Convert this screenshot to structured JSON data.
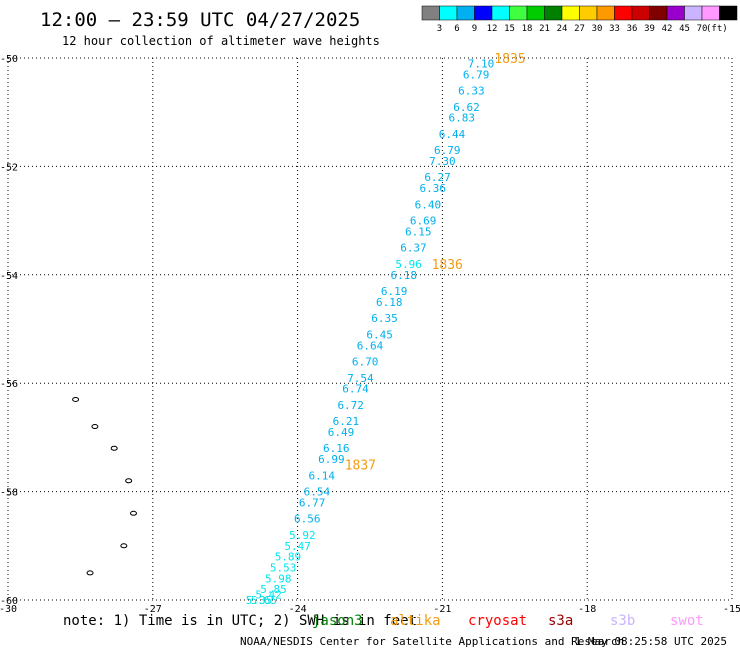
{
  "header": {
    "title": "12:00 — 23:59 UTC 04/27/2025",
    "subtitle": "12 hour collection of altimeter wave heights"
  },
  "colorbar": {
    "ticks": [
      "3",
      "6",
      "9",
      "12",
      "15",
      "18",
      "21",
      "24",
      "27",
      "30",
      "33",
      "36",
      "39",
      "42",
      "45",
      "70"
    ],
    "unit": "(ft)",
    "colors": [
      "#808080",
      "#00ffff",
      "#00b0f0",
      "#0000ff",
      "#00ffff",
      "#40ff40",
      "#00cc00",
      "#008000",
      "#ffff00",
      "#ffcc00",
      "#ff9900",
      "#ff0000",
      "#cc0000",
      "#800000",
      "#9900cc",
      "#ccb3ff",
      "#ff99ff",
      "#000000"
    ]
  },
  "footer": {
    "note": "note: 1) Time is in UTC; 2) SWH is in feet",
    "credit": "NOAA/NESDIS Center for Satellite Applications and Research",
    "timestamp": "1 May 08:25:58 UTC 2025",
    "satellites": [
      {
        "name": "jason3",
        "color": "#008000"
      },
      {
        "name": "altika",
        "color": "#f39c12"
      },
      {
        "name": "cryosat",
        "color": "#ff0000"
      },
      {
        "name": "s3a",
        "color": "#990000"
      },
      {
        "name": "s3b",
        "color": "#ccb3ff"
      },
      {
        "name": "swot",
        "color": "#ff99ff"
      }
    ]
  },
  "chart_data": {
    "type": "scatter",
    "xlim": [
      -30,
      -15
    ],
    "ylim": [
      -60,
      -50
    ],
    "x_ticks": [
      -30,
      -27,
      -24,
      -21,
      -18,
      -15
    ],
    "y_ticks": [
      -50,
      -52,
      -54,
      -56,
      -58,
      -60
    ],
    "x_tick_labels": [
      "-30",
      "-27",
      "-24",
      "-21",
      "-18",
      "-15"
    ],
    "y_tick_labels": [
      "-50",
      "-52",
      "-54",
      "-56",
      "-58",
      "-60"
    ],
    "grid": true,
    "track_points": [
      {
        "lon": -20.2,
        "lat": -50.1,
        "swh": "7.10",
        "color": "#00b0f0"
      },
      {
        "lon": -20.3,
        "lat": -50.3,
        "swh": "6.79",
        "color": "#00b0f0"
      },
      {
        "lon": -20.4,
        "lat": -50.6,
        "swh": "6.33",
        "color": "#00b0f0"
      },
      {
        "lon": -20.5,
        "lat": -50.9,
        "swh": "6.62",
        "color": "#00b0f0"
      },
      {
        "lon": -20.6,
        "lat": -51.1,
        "swh": "6.83",
        "color": "#00b0f0"
      },
      {
        "lon": -20.8,
        "lat": -51.4,
        "swh": "6.44",
        "color": "#00b0f0"
      },
      {
        "lon": -20.9,
        "lat": -51.7,
        "swh": "6.79",
        "color": "#00b0f0"
      },
      {
        "lon": -21.0,
        "lat": -51.9,
        "swh": "7.30",
        "color": "#00b0f0"
      },
      {
        "lon": -21.1,
        "lat": -52.2,
        "swh": "6.27",
        "color": "#00b0f0"
      },
      {
        "lon": -21.2,
        "lat": -52.4,
        "swh": "6.36",
        "color": "#00b0f0"
      },
      {
        "lon": -21.3,
        "lat": -52.7,
        "swh": "6.40",
        "color": "#00b0f0"
      },
      {
        "lon": -21.4,
        "lat": -53.0,
        "swh": "6.69",
        "color": "#00b0f0"
      },
      {
        "lon": -21.5,
        "lat": -53.2,
        "swh": "6.15",
        "color": "#00b0f0"
      },
      {
        "lon": -21.6,
        "lat": -53.5,
        "swh": "6.37",
        "color": "#00b0f0"
      },
      {
        "lon": -21.7,
        "lat": -53.8,
        "swh": "5.96",
        "color": "#00e5ee"
      },
      {
        "lon": -21.8,
        "lat": -54.0,
        "swh": "6.18",
        "color": "#00b0f0"
      },
      {
        "lon": -22.0,
        "lat": -54.3,
        "swh": "6.19",
        "color": "#00b0f0"
      },
      {
        "lon": -22.1,
        "lat": -54.5,
        "swh": "6.18",
        "color": "#00b0f0"
      },
      {
        "lon": -22.2,
        "lat": -54.8,
        "swh": "6.35",
        "color": "#00b0f0"
      },
      {
        "lon": -22.3,
        "lat": -55.1,
        "swh": "6.45",
        "color": "#00b0f0"
      },
      {
        "lon": -22.5,
        "lat": -55.3,
        "swh": "6.64",
        "color": "#00b0f0"
      },
      {
        "lon": -22.6,
        "lat": -55.6,
        "swh": "6.70",
        "color": "#00b0f0"
      },
      {
        "lon": -22.7,
        "lat": -55.9,
        "swh": "7.54",
        "color": "#00b0f0"
      },
      {
        "lon": -22.8,
        "lat": -56.1,
        "swh": "6.74",
        "color": "#00b0f0"
      },
      {
        "lon": -22.9,
        "lat": -56.4,
        "swh": "6.72",
        "color": "#00b0f0"
      },
      {
        "lon": -23.0,
        "lat": -56.7,
        "swh": "6.21",
        "color": "#00b0f0"
      },
      {
        "lon": -23.1,
        "lat": -56.9,
        "swh": "6.49",
        "color": "#00b0f0"
      },
      {
        "lon": -23.2,
        "lat": -57.2,
        "swh": "6.16",
        "color": "#00b0f0"
      },
      {
        "lon": -23.3,
        "lat": -57.4,
        "swh": "6.99",
        "color": "#00b0f0"
      },
      {
        "lon": -23.5,
        "lat": -57.7,
        "swh": "6.14",
        "color": "#00b0f0"
      },
      {
        "lon": -23.6,
        "lat": -58.0,
        "swh": "6.54",
        "color": "#00b0f0"
      },
      {
        "lon": -23.7,
        "lat": -58.2,
        "swh": "6.77",
        "color": "#00b0f0"
      },
      {
        "lon": -23.8,
        "lat": -58.5,
        "swh": "6.56",
        "color": "#00b0f0"
      },
      {
        "lon": -23.9,
        "lat": -58.8,
        "swh": "5.92",
        "color": "#00e5ee"
      },
      {
        "lon": -24.0,
        "lat": -59.0,
        "swh": "5.47",
        "color": "#00e5ee"
      },
      {
        "lon": -24.2,
        "lat": -59.2,
        "swh": "5.89",
        "color": "#00e5ee"
      },
      {
        "lon": -24.3,
        "lat": -59.4,
        "swh": "5.53",
        "color": "#00e5ee"
      },
      {
        "lon": -24.4,
        "lat": -59.6,
        "swh": "5.98",
        "color": "#00e5ee"
      },
      {
        "lon": -24.5,
        "lat": -59.8,
        "swh": "5.85",
        "color": "#00e5ee"
      },
      {
        "lon": -24.6,
        "lat": -59.9,
        "swh": "5.42",
        "color": "#00e5ee"
      },
      {
        "lon": -24.7,
        "lat": -60.0,
        "swh": "5.65",
        "color": "#00e5ee"
      },
      {
        "lon": -24.8,
        "lat": -60.0,
        "swh": "5.35",
        "color": "#00e5ee"
      }
    ],
    "hour_labels": [
      {
        "lon": -19.6,
        "lat": -50.0,
        "text": "1835"
      },
      {
        "lon": -20.9,
        "lat": -53.8,
        "text": "1836"
      },
      {
        "lon": -22.7,
        "lat": -57.5,
        "text": "1837"
      }
    ],
    "islands": [
      {
        "lon": -28.6,
        "lat": -56.3
      },
      {
        "lon": -28.2,
        "lat": -56.8
      },
      {
        "lon": -27.8,
        "lat": -57.2
      },
      {
        "lon": -27.5,
        "lat": -57.8
      },
      {
        "lon": -27.4,
        "lat": -58.4
      },
      {
        "lon": -27.6,
        "lat": -59.0
      },
      {
        "lon": -28.3,
        "lat": -59.5
      }
    ]
  }
}
